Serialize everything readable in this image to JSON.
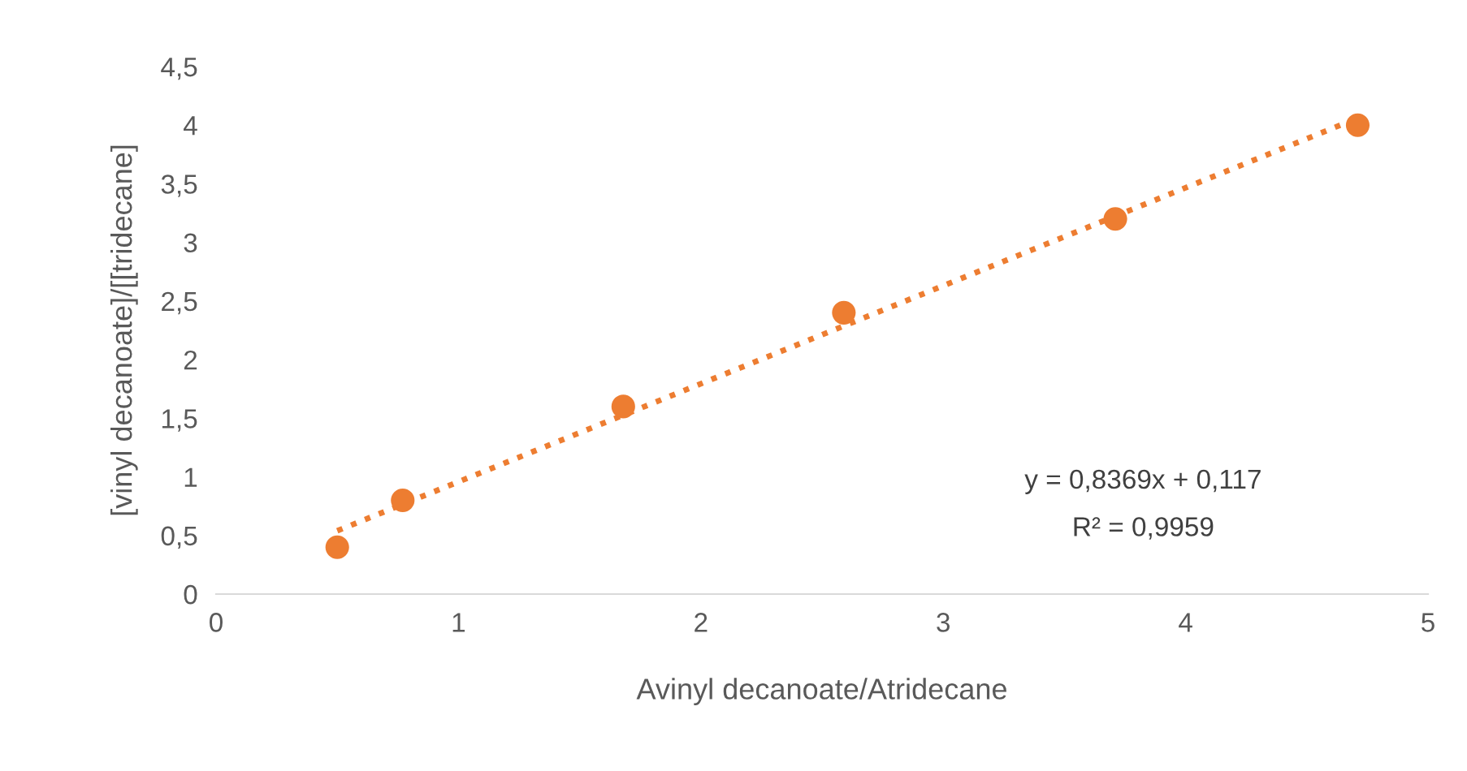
{
  "chart_data": {
    "type": "scatter",
    "xlabel": "Avinyl decanoate/Atridecane",
    "ylabel": "[vinyl decanoate]/[[tridecane]",
    "xlim": [
      0,
      5
    ],
    "xticks": [
      0,
      1,
      2,
      3,
      4,
      5
    ],
    "ylim": [
      0,
      4.5
    ],
    "yticks": [
      0,
      {
        "value": 0.5,
        "label": "0,5"
      },
      1,
      {
        "value": 1.5,
        "label": "1,5"
      },
      2,
      {
        "value": 2.5,
        "label": "2,5"
      },
      3,
      {
        "value": 3.5,
        "label": "3,5"
      },
      4,
      {
        "value": 4.5,
        "label": "4,5"
      }
    ],
    "grid": false,
    "legend": false,
    "series": [
      {
        "color": "#ed7d31",
        "marker": "circle",
        "x": [
          0.5,
          0.77,
          1.68,
          2.59,
          3.71,
          4.71
        ],
        "values": [
          0.4,
          0.8,
          1.6,
          2.4,
          3.2,
          4.0
        ]
      },
      {
        "type": "line",
        "color": "#ed7d31",
        "line_style": "dotted",
        "marker": "none",
        "x": [
          0.5,
          4.71
        ],
        "values": [
          0.54,
          4.06
        ]
      }
    ],
    "annotations": [
      "y = 0,8369x + 0,117",
      "R² = 0,9959"
    ]
  }
}
